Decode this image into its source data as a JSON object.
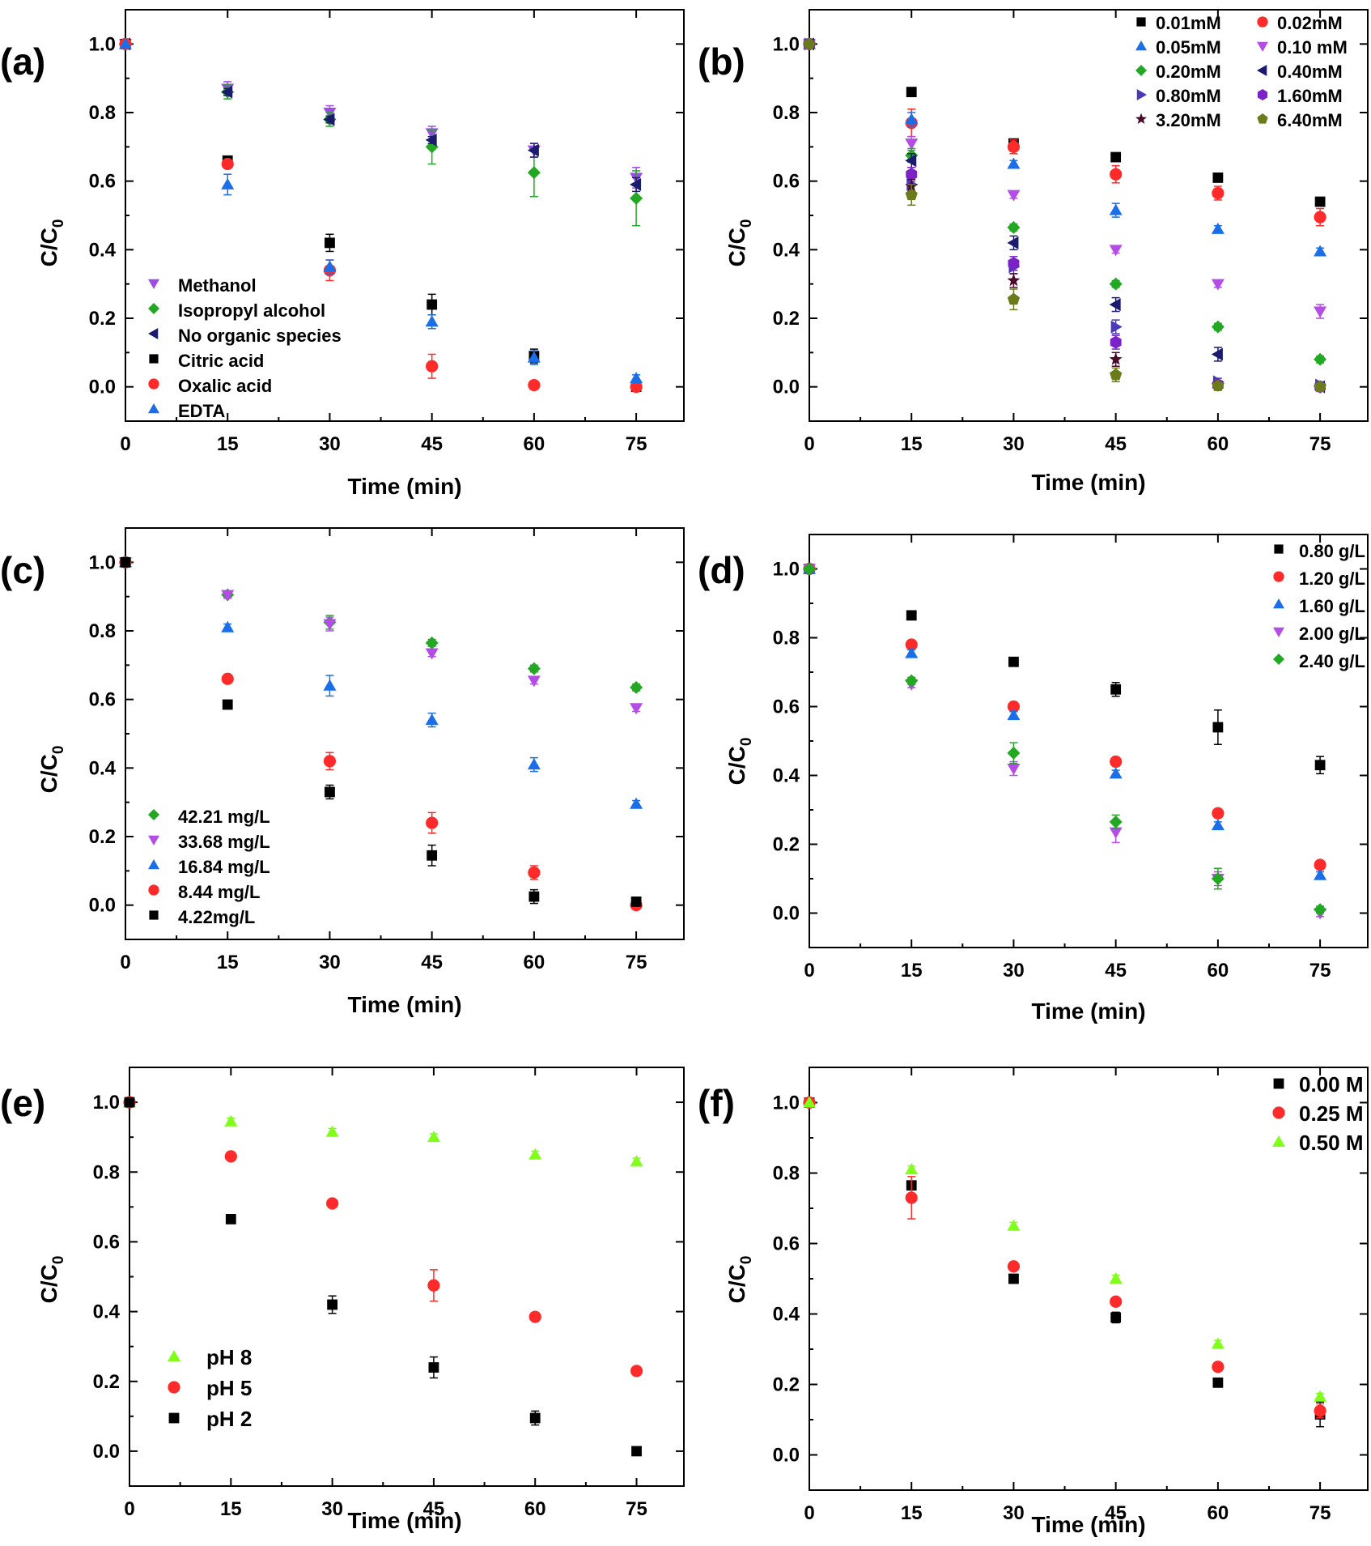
{
  "chart_data": [
    {
      "type": "scatter",
      "panel_label": "(a)",
      "xlabel": "Time (min)",
      "ylabel": "C/C0",
      "x_ticks": [
        0,
        15,
        30,
        45,
        60,
        75
      ],
      "y_ticks": [
        "0.0",
        "0.2",
        "0.4",
        "0.6",
        "0.8",
        "1.0"
      ],
      "xlim": [
        0,
        82
      ],
      "ylim": [
        -0.1,
        1.1
      ],
      "legend_position": "bottom-left",
      "series": [
        {
          "name": "Methanol",
          "marker": "triangle-down",
          "color": "#9b4de6",
          "x": [
            0,
            15,
            30,
            45,
            60,
            75
          ],
          "y": [
            1.0,
            0.87,
            0.8,
            0.74,
            0.69,
            0.61
          ],
          "err": [
            0,
            0.02,
            0.02,
            0.02,
            0.02,
            0.03
          ]
        },
        {
          "name": "Isopropyl alcohol",
          "marker": "diamond",
          "color": "#22a822",
          "x": [
            0,
            15,
            30,
            45,
            60,
            75
          ],
          "y": [
            1.0,
            0.86,
            0.78,
            0.7,
            0.625,
            0.55
          ],
          "err": [
            0,
            0.02,
            0.02,
            0.05,
            0.07,
            0.08
          ]
        },
        {
          "name": "No organic species",
          "marker": "triangle-left",
          "color": "#1a1a6e",
          "x": [
            0,
            15,
            30,
            45,
            60,
            75
          ],
          "y": [
            1.0,
            0.86,
            0.78,
            0.72,
            0.69,
            0.59
          ],
          "err": [
            0,
            0.01,
            0.01,
            0.01,
            0.02,
            0.02
          ]
        },
        {
          "name": "Citric acid",
          "marker": "square",
          "color": "#000000",
          "x": [
            0,
            15,
            30,
            45,
            60,
            75
          ],
          "y": [
            1.0,
            0.66,
            0.42,
            0.24,
            0.09,
            0.0
          ],
          "err": [
            0,
            0.01,
            0.025,
            0.03,
            0.02,
            0.01
          ]
        },
        {
          "name": "Oxalic acid",
          "marker": "circle",
          "color": "#ff2a2a",
          "x": [
            0,
            15,
            30,
            45,
            60,
            75
          ],
          "y": [
            1.0,
            0.65,
            0.34,
            0.06,
            0.005,
            0.0
          ],
          "err": [
            0,
            0.01,
            0.03,
            0.035,
            0.005,
            0.005
          ]
        },
        {
          "name": "EDTA",
          "marker": "triangle-up",
          "color": "#1a6fe8",
          "x": [
            0,
            15,
            30,
            45,
            60,
            75
          ],
          "y": [
            1.0,
            0.59,
            0.35,
            0.19,
            0.085,
            0.025
          ],
          "err": [
            0,
            0.03,
            0.02,
            0.02,
            0.02,
            0.01
          ]
        }
      ]
    },
    {
      "type": "scatter",
      "panel_label": "(b)",
      "xlabel": "Time (min)",
      "ylabel": "C/C0",
      "x_ticks": [
        0,
        15,
        30,
        45,
        60,
        75
      ],
      "y_ticks": [
        "0.0",
        "0.2",
        "0.4",
        "0.6",
        "0.8",
        "1.0"
      ],
      "xlim": [
        0,
        82
      ],
      "ylim": [
        -0.1,
        1.1
      ],
      "legend_position": "top-right",
      "series": [
        {
          "name": "0.01mM",
          "marker": "square",
          "color": "#000000",
          "x": [
            0,
            15,
            30,
            45,
            60,
            75
          ],
          "y": [
            1.0,
            0.86,
            0.71,
            0.67,
            0.61,
            0.54
          ],
          "err": [
            0,
            0.01,
            0.01,
            0.01,
            0.01,
            0.01
          ]
        },
        {
          "name": "0.02mM",
          "marker": "circle",
          "color": "#ff2a2a",
          "x": [
            0,
            15,
            30,
            45,
            60,
            75
          ],
          "y": [
            1.0,
            0.77,
            0.7,
            0.62,
            0.565,
            0.495
          ],
          "err": [
            0,
            0.04,
            0.02,
            0.025,
            0.02,
            0.025
          ]
        },
        {
          "name": "0.05mM",
          "marker": "triangle-up",
          "color": "#1a6fe8",
          "x": [
            0,
            15,
            30,
            45,
            60,
            75
          ],
          "y": [
            1.0,
            0.78,
            0.65,
            0.515,
            0.46,
            0.395
          ],
          "err": [
            0,
            0.02,
            0.01,
            0.02,
            0.01,
            0.01
          ]
        },
        {
          "name": "0.10 mM",
          "marker": "triangle-down",
          "color": "#b44de6",
          "x": [
            0,
            15,
            30,
            45,
            60,
            75
          ],
          "y": [
            1.0,
            0.71,
            0.56,
            0.4,
            0.3,
            0.22
          ],
          "err": [
            0,
            0.02,
            0.01,
            0.01,
            0.01,
            0.02
          ]
        },
        {
          "name": "0.20mM",
          "marker": "diamond",
          "color": "#22a822",
          "x": [
            0,
            15,
            30,
            45,
            60,
            75
          ],
          "y": [
            1.0,
            0.675,
            0.465,
            0.3,
            0.175,
            0.08
          ],
          "err": [
            0,
            0.02,
            0.01,
            0.01,
            0.01,
            0.01
          ]
        },
        {
          "name": "0.40mM",
          "marker": "triangle-left",
          "color": "#1a1a6e",
          "x": [
            0,
            15,
            30,
            45,
            60,
            75
          ],
          "y": [
            1.0,
            0.66,
            0.42,
            0.24,
            0.095,
            0.0
          ],
          "err": [
            0,
            0.02,
            0.02,
            0.02,
            0.02,
            0.01
          ]
        },
        {
          "name": "0.80mM",
          "marker": "triangle-right",
          "color": "#4a3ab8",
          "x": [
            0,
            15,
            30,
            45,
            60,
            75
          ],
          "y": [
            1.0,
            0.59,
            0.35,
            0.175,
            0.015,
            0.005
          ],
          "err": [
            0,
            0.02,
            0.02,
            0.02,
            0.01,
            0.01
          ]
        },
        {
          "name": "1.60mM",
          "marker": "hexagon",
          "color": "#7a22c8",
          "x": [
            0,
            15,
            30,
            45,
            60,
            75
          ],
          "y": [
            1.0,
            0.62,
            0.36,
            0.13,
            0.005,
            0.0
          ],
          "err": [
            0,
            0.02,
            0.02,
            0.02,
            0.01,
            0.01
          ]
        },
        {
          "name": "3.20mM",
          "marker": "star",
          "color": "#4a0a2a",
          "x": [
            0,
            15,
            30,
            45,
            60,
            75
          ],
          "y": [
            1.0,
            0.585,
            0.31,
            0.08,
            0.005,
            0.0
          ],
          "err": [
            0,
            0.02,
            0.02,
            0.02,
            0.01,
            0.01
          ]
        },
        {
          "name": "6.40mM",
          "marker": "pentagon",
          "color": "#6b7a1a",
          "x": [
            0,
            15,
            30,
            45,
            60,
            75
          ],
          "y": [
            1.0,
            0.56,
            0.255,
            0.035,
            0.003,
            0.0
          ],
          "err": [
            0,
            0.03,
            0.03,
            0.02,
            0.01,
            0.01
          ]
        }
      ]
    },
    {
      "type": "scatter",
      "panel_label": "(c)",
      "xlabel": "Time (min)",
      "ylabel": "C/C0",
      "x_ticks": [
        0,
        15,
        30,
        45,
        60,
        75
      ],
      "y_ticks": [
        "0.0",
        "0.2",
        "0.4",
        "0.6",
        "0.8",
        "1.0"
      ],
      "xlim": [
        0,
        82
      ],
      "ylim": [
        -0.1,
        1.1
      ],
      "legend_position": "bottom-left",
      "series": [
        {
          "name": "42.21 mg/L",
          "marker": "diamond",
          "color": "#22a822",
          "x": [
            0,
            15,
            30,
            45,
            60,
            75
          ],
          "y": [
            1.0,
            0.905,
            0.825,
            0.765,
            0.69,
            0.635
          ],
          "err": [
            0,
            0.01,
            0.02,
            0.01,
            0.01,
            0.01
          ]
        },
        {
          "name": "33.68 mg/L",
          "marker": "triangle-down",
          "color": "#b44de6",
          "x": [
            0,
            15,
            30,
            45,
            60,
            75
          ],
          "y": [
            1.0,
            0.905,
            0.82,
            0.735,
            0.655,
            0.575
          ],
          "err": [
            0,
            0.01,
            0.02,
            0.01,
            0.01,
            0.01
          ]
        },
        {
          "name": "16.84 mg/L",
          "marker": "triangle-up",
          "color": "#1a6fe8",
          "x": [
            0,
            15,
            30,
            45,
            60,
            75
          ],
          "y": [
            1.0,
            0.81,
            0.64,
            0.54,
            0.41,
            0.295
          ],
          "err": [
            0,
            0.01,
            0.03,
            0.02,
            0.02,
            0.01
          ]
        },
        {
          "name": "8.44 mg/L",
          "marker": "circle",
          "color": "#ff2a2a",
          "x": [
            0,
            15,
            30,
            45,
            60,
            75
          ],
          "y": [
            1.0,
            0.66,
            0.42,
            0.24,
            0.095,
            0.0
          ],
          "err": [
            0,
            0.01,
            0.025,
            0.03,
            0.02,
            0.005
          ]
        },
        {
          "name": "4.22mg/L",
          "marker": "square",
          "color": "#000000",
          "x": [
            0,
            15,
            30,
            45,
            60,
            75
          ],
          "y": [
            1.0,
            0.585,
            0.33,
            0.145,
            0.025,
            0.01
          ],
          "err": [
            0,
            0.01,
            0.02,
            0.03,
            0.02,
            0.01
          ]
        }
      ]
    },
    {
      "type": "scatter",
      "panel_label": "(d)",
      "xlabel": "Time (min)",
      "ylabel": "C/C0",
      "x_ticks": [
        0,
        15,
        30,
        45,
        60,
        75
      ],
      "y_ticks": [
        "0.0",
        "0.2",
        "0.4",
        "0.6",
        "0.8",
        "1.0"
      ],
      "xlim": [
        0,
        82
      ],
      "ylim": [
        -0.1,
        1.1
      ],
      "legend_position": "top-right",
      "series": [
        {
          "name": "0.80 g/L",
          "marker": "square",
          "color": "#000000",
          "x": [
            0,
            15,
            30,
            45,
            60,
            75
          ],
          "y": [
            1.0,
            0.865,
            0.73,
            0.65,
            0.54,
            0.43
          ],
          "err": [
            0,
            0.01,
            0.01,
            0.02,
            0.05,
            0.025
          ]
        },
        {
          "name": "1.20 g/L",
          "marker": "circle",
          "color": "#ff2a2a",
          "x": [
            0,
            15,
            30,
            45,
            60,
            75
          ],
          "y": [
            1.0,
            0.78,
            0.6,
            0.44,
            0.29,
            0.14
          ],
          "err": [
            0,
            0.01,
            0.01,
            0.01,
            0.01,
            0.01
          ]
        },
        {
          "name": "1.60 g/L",
          "marker": "triangle-up",
          "color": "#1a6fe8",
          "x": [
            0,
            15,
            30,
            45,
            60,
            75
          ],
          "y": [
            1.0,
            0.755,
            0.575,
            0.405,
            0.255,
            0.11
          ],
          "err": [
            0,
            0.01,
            0.01,
            0.01,
            0.01,
            0.01
          ]
        },
        {
          "name": "2.00 g/L",
          "marker": "triangle-down",
          "color": "#b44de6",
          "x": [
            0,
            15,
            30,
            45,
            60,
            75
          ],
          "y": [
            1.0,
            0.665,
            0.42,
            0.235,
            0.1,
            0.0
          ],
          "err": [
            0,
            0.01,
            0.02,
            0.03,
            0.02,
            0.01
          ]
        },
        {
          "name": "2.40 g/L",
          "marker": "diamond",
          "color": "#22a822",
          "x": [
            0,
            15,
            30,
            45,
            60,
            75
          ],
          "y": [
            1.0,
            0.675,
            0.465,
            0.265,
            0.1,
            0.01
          ],
          "err": [
            0,
            0.01,
            0.03,
            0.02,
            0.03,
            0.01
          ]
        }
      ]
    },
    {
      "type": "scatter",
      "panel_label": "(e)",
      "xlabel": "Time (min)",
      "ylabel": "C/C0",
      "x_ticks": [
        0,
        15,
        30,
        45,
        60,
        75
      ],
      "y_ticks": [
        "0.0",
        "0.2",
        "0.4",
        "0.6",
        "0.8",
        "1.0"
      ],
      "xlim": [
        0,
        82
      ],
      "ylim": [
        -0.1,
        1.1
      ],
      "legend_position": "bottom-left",
      "series": [
        {
          "name": "pH 8",
          "marker": "triangle-up",
          "color": "#7fff1a",
          "x": [
            0,
            15,
            30,
            45,
            60,
            75
          ],
          "y": [
            1.0,
            0.945,
            0.915,
            0.9,
            0.85,
            0.83
          ],
          "err": [
            0,
            0.01,
            0.01,
            0.01,
            0.01,
            0.01
          ]
        },
        {
          "name": "pH 5",
          "marker": "circle",
          "color": "#ff2a2a",
          "x": [
            0,
            15,
            30,
            45,
            60,
            75
          ],
          "y": [
            1.0,
            0.845,
            0.71,
            0.475,
            0.385,
            0.23
          ],
          "err": [
            0,
            0.01,
            0.01,
            0.045,
            0.01,
            0.01
          ]
        },
        {
          "name": "pH 2",
          "marker": "square",
          "color": "#000000",
          "x": [
            0,
            15,
            30,
            45,
            60,
            75
          ],
          "y": [
            1.0,
            0.665,
            0.42,
            0.24,
            0.095,
            0.0
          ],
          "err": [
            0,
            0.01,
            0.025,
            0.03,
            0.02,
            0.005
          ]
        }
      ]
    },
    {
      "type": "scatter",
      "panel_label": "(f)",
      "xlabel": "Time (min)",
      "ylabel": "C/C0",
      "x_ticks": [
        0,
        15,
        30,
        45,
        60,
        75
      ],
      "y_ticks": [
        "0.0",
        "0.2",
        "0.4",
        "0.6",
        "0.8",
        "1.0"
      ],
      "xlim": [
        0,
        82
      ],
      "ylim": [
        -0.1,
        1.1
      ],
      "legend_position": "top-right",
      "series": [
        {
          "name": "0.00 M",
          "marker": "square",
          "color": "#000000",
          "x": [
            0,
            15,
            30,
            45,
            60,
            75
          ],
          "y": [
            1.0,
            0.765,
            0.5,
            0.39,
            0.205,
            0.115
          ],
          "err": [
            0,
            0.01,
            0.01,
            0.015,
            0.01,
            0.035
          ]
        },
        {
          "name": "0.25 M",
          "marker": "circle",
          "color": "#ff2a2a",
          "x": [
            0,
            15,
            30,
            45,
            60,
            75
          ],
          "y": [
            1.0,
            0.73,
            0.535,
            0.435,
            0.25,
            0.125
          ],
          "err": [
            0,
            0.06,
            0.01,
            0.01,
            0.01,
            0.02
          ]
        },
        {
          "name": "0.50 M",
          "marker": "triangle-up",
          "color": "#7fff1a",
          "x": [
            0,
            15,
            30,
            45,
            60,
            75
          ],
          "y": [
            1.0,
            0.81,
            0.65,
            0.5,
            0.315,
            0.165
          ],
          "err": [
            0,
            0.01,
            0.01,
            0.01,
            0.01,
            0.01
          ]
        }
      ]
    }
  ]
}
